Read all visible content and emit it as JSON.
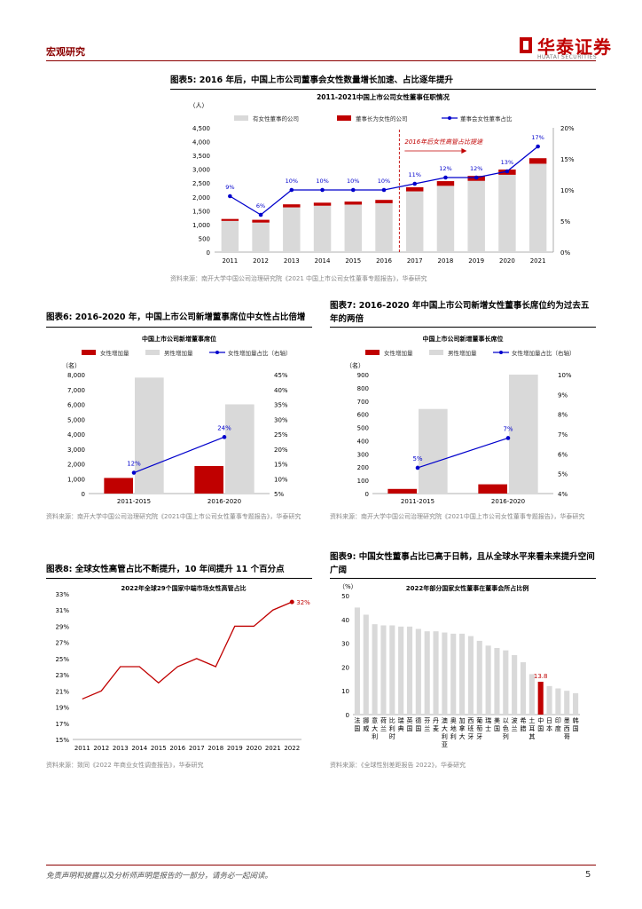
{
  "header": {
    "section": "宏观研究",
    "logo": "华泰证券",
    "logo_sub": "HUATAI SECURITIES"
  },
  "fig5": {
    "title": "图表5:  2016 年后，中国上市公司董事会女性数量增长加速、占比逐年提升",
    "source": "资料来源：南开大学中国公司治理研究院《2021 中国上市公司女性董事专题报告》，华泰研究",
    "chart_data": {
      "type": "bar",
      "title": "2011-2021中国上市公司女性董事任职情况",
      "ylabel": "（人）",
      "categories": [
        "2011",
        "2012",
        "2013",
        "2014",
        "2015",
        "2016",
        "2017",
        "2018",
        "2019",
        "2020",
        "2021"
      ],
      "series": [
        {
          "name": "有女性董事的公司",
          "values": [
            1130,
            1070,
            1620,
            1680,
            1720,
            1770,
            2200,
            2400,
            2580,
            2800,
            3200
          ]
        },
        {
          "name": "董事长为女性的公司",
          "values": [
            70,
            100,
            110,
            110,
            110,
            120,
            150,
            170,
            180,
            190,
            200
          ]
        },
        {
          "name": "董事会女性董事占比",
          "values": [
            9,
            6,
            10,
            10,
            10,
            10,
            11,
            12,
            12,
            13,
            17
          ],
          "labels": [
            "9%",
            "6%",
            "10%",
            "10%",
            "10%",
            "10%",
            "11%",
            "12%",
            "12%",
            "13%",
            "17%"
          ]
        }
      ],
      "y_ticks": [
        "0",
        "500",
        "1,000",
        "1,500",
        "2,000",
        "2,500",
        "3,000",
        "3,500",
        "4,000",
        "4,500"
      ],
      "y2_ticks": [
        "0%",
        "5%",
        "10%",
        "15%",
        "20%"
      ],
      "ylim": [
        0,
        4500
      ],
      "y2lim": [
        0,
        20
      ],
      "annotation": "2016年后女性高管占比提速"
    }
  },
  "fig6": {
    "title": "图表6:  2016-2020 年，中国上市公司新增董事席位中女性占比倍增",
    "source": "资料来源：南开大学中国公司治理研究院《2021中国上市公司女性董事专题报告》，华泰研究",
    "chart_data": {
      "type": "bar",
      "title": "中国上市公司新增董事席位",
      "ylabel": "（名）",
      "categories": [
        "2011-2015",
        "2016-2020"
      ],
      "series": [
        {
          "name": "女性增加量",
          "values": [
            1050,
            1850
          ]
        },
        {
          "name": "男性增加量",
          "values": [
            7800,
            6000
          ]
        },
        {
          "name": "女性增加量占比（右轴）",
          "values": [
            12,
            24
          ],
          "labels": [
            "12%",
            "24%"
          ]
        }
      ],
      "y_ticks": [
        "0",
        "1,000",
        "2,000",
        "3,000",
        "4,000",
        "5,000",
        "6,000",
        "7,000",
        "8,000"
      ],
      "y2_ticks": [
        "5%",
        "10%",
        "15%",
        "20%",
        "25%",
        "30%",
        "35%",
        "40%",
        "45%"
      ],
      "ylim": [
        0,
        8000
      ],
      "y2lim": [
        5,
        45
      ]
    }
  },
  "fig7": {
    "title": "图表7:  2016-2020 年中国上市公司新增女性董事长席位约为过去五年的两倍",
    "source": "资料来源：南开大学中国公司治理研究院《2021中国上市公司女性董事专题报告》，华泰研究",
    "chart_data": {
      "type": "bar",
      "title": "中国上市公司新增董事长席位",
      "ylabel": "（名）",
      "categories": [
        "2011-2015",
        "2016-2020"
      ],
      "series": [
        {
          "name": "女性增加量",
          "values": [
            35,
            70
          ]
        },
        {
          "name": "男性增加量",
          "values": [
            640,
            900
          ]
        },
        {
          "name": "女性增加量占比（右轴）",
          "values": [
            5.3,
            6.8
          ],
          "labels": [
            "5%",
            "7%"
          ]
        }
      ],
      "y_ticks": [
        "0",
        "100",
        "200",
        "300",
        "400",
        "500",
        "600",
        "700",
        "800",
        "900"
      ],
      "y2_ticks": [
        "4%",
        "5%",
        "6%",
        "7%",
        "8%",
        "9%",
        "10%"
      ],
      "ylim": [
        0,
        900
      ],
      "y2lim": [
        4,
        10
      ]
    }
  },
  "fig8": {
    "title": "图表8:  全球女性高管占比不断提升，10 年间提升 11 个百分点",
    "source": "资料来源：致同《2022 年商业女性调查报告》，华泰研究",
    "chart_data": {
      "type": "line",
      "title": "2022年全球29个国家中端市场女性高管占比",
      "categories": [
        "2011",
        "2012",
        "2013",
        "2014",
        "2015",
        "2016",
        "2017",
        "2018",
        "2019",
        "2020",
        "2021",
        "2022"
      ],
      "values": [
        20,
        21,
        24,
        24,
        22,
        24,
        25,
        24,
        29,
        29,
        31,
        32
      ],
      "last_label": "32%",
      "y_ticks": [
        "15%",
        "17%",
        "19%",
        "21%",
        "23%",
        "25%",
        "27%",
        "29%",
        "31%",
        "33%"
      ],
      "ylim": [
        15,
        33
      ]
    }
  },
  "fig9": {
    "title": "图表9:  中国女性董事占比已高于日韩，且从全球水平来看未来提升空间广阔",
    "source": "资料来源：《全球性别差距报告 2022》，华泰研究",
    "chart_data": {
      "type": "bar",
      "title": "2022年部分国家女性董事在董事会所占比例",
      "ylabel": "（%）",
      "categories": [
        "法国",
        "挪威",
        "意大利",
        "荷兰",
        "比利时",
        "瑞典",
        "英国",
        "德国",
        "芬兰",
        "丹麦",
        "澳大利亚",
        "奥地利",
        "加拿大",
        "西班牙",
        "葡萄牙",
        "瑞士",
        "美国",
        "以色列",
        "波兰",
        "希腊",
        "土耳其",
        "中国",
        "日本",
        "印度",
        "墨西哥",
        "韩国"
      ],
      "values": [
        45,
        42,
        38,
        37.5,
        37.5,
        37,
        37,
        36,
        35,
        35,
        34.5,
        34,
        34,
        33,
        31,
        29,
        28,
        27,
        25,
        22,
        17,
        13.8,
        12,
        11,
        10,
        9
      ],
      "highlight_index": 21,
      "highlight_label": "13.8",
      "y_ticks": [
        "0",
        "10",
        "20",
        "30",
        "40",
        "50"
      ],
      "ylim": [
        0,
        50
      ]
    }
  },
  "footer": {
    "disclaimer": "免责声明和披露以及分析师声明是报告的一部分，请务必一起阅读。",
    "page": "5"
  }
}
